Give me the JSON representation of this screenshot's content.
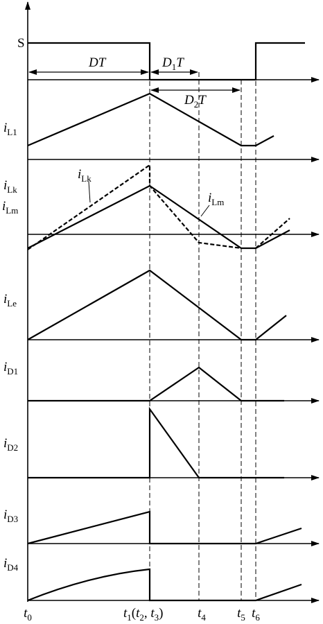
{
  "signal_labels": [
    {
      "parts": [
        {
          "text": "S",
          "kind": "roman"
        }
      ]
    },
    {
      "parts": [
        {
          "text": "i",
          "kind": "italic"
        },
        {
          "text": "L1",
          "kind": "sub"
        }
      ]
    },
    {
      "parts": [
        {
          "text": "i",
          "kind": "italic"
        },
        {
          "text": "Lk",
          "kind": "sub"
        }
      ]
    },
    {
      "parts": [
        {
          "text": "i",
          "kind": "italic"
        },
        {
          "text": "Lm",
          "kind": "sub"
        }
      ]
    },
    {
      "parts": [
        {
          "text": "i",
          "kind": "italic"
        },
        {
          "text": "Le",
          "kind": "sub"
        }
      ]
    },
    {
      "parts": [
        {
          "text": "i",
          "kind": "italic"
        },
        {
          "text": "D1",
          "kind": "sub"
        }
      ]
    },
    {
      "parts": [
        {
          "text": "i",
          "kind": "italic"
        },
        {
          "text": "D2",
          "kind": "sub"
        }
      ]
    },
    {
      "parts": [
        {
          "text": "i",
          "kind": "italic"
        },
        {
          "text": "D3",
          "kind": "sub"
        }
      ]
    },
    {
      "parts": [
        {
          "text": "i",
          "kind": "italic"
        },
        {
          "text": "D4",
          "kind": "sub"
        }
      ]
    }
  ],
  "intervals": [
    {
      "parts": [
        {
          "text": "DT",
          "kind": "italic"
        }
      ]
    },
    {
      "parts": [
        {
          "text": "D",
          "kind": "italic"
        },
        {
          "text": "1",
          "kind": "sub"
        },
        {
          "text": "T",
          "kind": "italic"
        }
      ]
    },
    {
      "parts": [
        {
          "text": "D",
          "kind": "italic"
        },
        {
          "text": "2",
          "kind": "sub"
        },
        {
          "text": "T",
          "kind": "italic"
        }
      ]
    }
  ],
  "annotations": [
    {
      "parts": [
        {
          "text": "i",
          "kind": "italic"
        },
        {
          "text": "Lk",
          "kind": "sub"
        }
      ]
    },
    {
      "parts": [
        {
          "text": "i",
          "kind": "italic"
        },
        {
          "text": "Lm",
          "kind": "sub"
        }
      ]
    }
  ],
  "time_labels": [
    {
      "parts": [
        {
          "text": "t",
          "kind": "italic"
        },
        {
          "text": "0",
          "kind": "sub"
        }
      ]
    },
    {
      "parts": [
        {
          "text": "t",
          "kind": "italic"
        },
        {
          "text": "1",
          "kind": "sub"
        },
        {
          "text": "(",
          "kind": "roman"
        },
        {
          "text": "t",
          "kind": "italic"
        },
        {
          "text": "2",
          "kind": "sub"
        },
        {
          "text": ", ",
          "kind": "roman"
        },
        {
          "text": "t",
          "kind": "italic"
        },
        {
          "text": "3",
          "kind": "sub"
        },
        {
          "text": ")",
          "kind": "roman"
        }
      ]
    },
    {
      "parts": [
        {
          "text": "t",
          "kind": "italic"
        },
        {
          "text": "4",
          "kind": "sub"
        }
      ]
    },
    {
      "parts": [
        {
          "text": "t",
          "kind": "italic"
        },
        {
          "text": "5",
          "kind": "sub"
        }
      ]
    },
    {
      "parts": [
        {
          "text": "t",
          "kind": "italic"
        },
        {
          "text": "6",
          "kind": "sub"
        }
      ]
    }
  ]
}
